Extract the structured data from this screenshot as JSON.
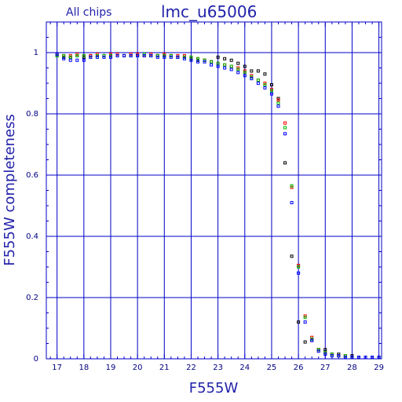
{
  "chart_data": {
    "type": "scatter",
    "title": "lmc_u65006",
    "subtitle": "All chips",
    "xlabel": "F555W",
    "ylabel": "F555W completeness",
    "xlim": [
      16.6,
      29.1
    ],
    "ylim": [
      0,
      1.1
    ],
    "xticks": [
      "17",
      "18",
      "19",
      "20",
      "21",
      "22",
      "23",
      "24",
      "25",
      "26",
      "27",
      "28",
      "29"
    ],
    "yticks": [
      "0",
      "0.2",
      "0.4",
      "0.6",
      "0.8",
      "1"
    ],
    "xtick_values": [
      17,
      18,
      19,
      20,
      21,
      22,
      23,
      24,
      25,
      26,
      27,
      28,
      29
    ],
    "ytick_values": [
      0,
      0.2,
      0.4,
      0.6,
      0.8,
      1
    ],
    "grid": true,
    "colors": {
      "axis": "#0000c8",
      "text": "#2222aa",
      "tick_text": "#000080"
    },
    "series": [
      {
        "color": "#000000",
        "points": [
          [
            17,
            0.99
          ],
          [
            17.25,
            0.985
          ],
          [
            17.5,
            0.985
          ],
          [
            17.75,
            0.99
          ],
          [
            18,
            0.985
          ],
          [
            18.25,
            0.99
          ],
          [
            18.5,
            0.99
          ],
          [
            18.75,
            0.99
          ],
          [
            19,
            0.99
          ],
          [
            19.25,
            0.99
          ],
          [
            19.5,
            0.99
          ],
          [
            19.75,
            0.99
          ],
          [
            20,
            0.99
          ],
          [
            20.25,
            0.99
          ],
          [
            20.5,
            0.99
          ],
          [
            20.75,
            0.99
          ],
          [
            21,
            0.99
          ],
          [
            21.25,
            0.99
          ],
          [
            21.5,
            0.985
          ],
          [
            21.75,
            0.985
          ],
          [
            22,
            0.98
          ],
          [
            22.25,
            0.975
          ],
          [
            22.5,
            0.975
          ],
          [
            22.75,
            0.97
          ],
          [
            23,
            0.985
          ],
          [
            23.25,
            0.98
          ],
          [
            23.5,
            0.975
          ],
          [
            23.75,
            0.965
          ],
          [
            24,
            0.955
          ],
          [
            24.25,
            0.94
          ],
          [
            24.5,
            0.94
          ],
          [
            24.75,
            0.93
          ],
          [
            25,
            0.895
          ],
          [
            25.25,
            0.85
          ],
          [
            25.5,
            0.64
          ],
          [
            25.75,
            0.335
          ],
          [
            26,
            0.12
          ],
          [
            26.25,
            0.055
          ],
          [
            26.5,
            0.06
          ],
          [
            26.75,
            0.03
          ],
          [
            27,
            0.03
          ],
          [
            27.25,
            0.015
          ],
          [
            27.5,
            0.015
          ],
          [
            27.75,
            0.01
          ],
          [
            28,
            0.01
          ],
          [
            28.25,
            0.005
          ],
          [
            28.5,
            0.005
          ],
          [
            28.75,
            0.005
          ],
          [
            29,
            0.005
          ]
        ]
      },
      {
        "color": "#ff0000",
        "points": [
          [
            17,
            0.995
          ],
          [
            17.25,
            0.99
          ],
          [
            17.5,
            0.99
          ],
          [
            17.75,
            0.995
          ],
          [
            18,
            0.99
          ],
          [
            18.25,
            0.99
          ],
          [
            18.5,
            0.995
          ],
          [
            18.75,
            0.99
          ],
          [
            19,
            0.995
          ],
          [
            19.25,
            0.995
          ],
          [
            19.5,
            0.99
          ],
          [
            19.75,
            0.995
          ],
          [
            20,
            0.995
          ],
          [
            20.25,
            0.99
          ],
          [
            20.5,
            0.995
          ],
          [
            20.75,
            0.99
          ],
          [
            21,
            0.995
          ],
          [
            21.25,
            0.99
          ],
          [
            21.5,
            0.99
          ],
          [
            21.75,
            0.99
          ],
          [
            22,
            0.985
          ],
          [
            22.25,
            0.98
          ],
          [
            22.5,
            0.975
          ],
          [
            22.75,
            0.97
          ],
          [
            23,
            0.965
          ],
          [
            23.25,
            0.96
          ],
          [
            23.5,
            0.955
          ],
          [
            23.75,
            0.95
          ],
          [
            24,
            0.94
          ],
          [
            24.25,
            0.925
          ],
          [
            24.5,
            0.91
          ],
          [
            24.75,
            0.9
          ],
          [
            25,
            0.88
          ],
          [
            25.25,
            0.845
          ],
          [
            25.5,
            0.77
          ],
          [
            25.75,
            0.56
          ],
          [
            26,
            0.305
          ],
          [
            26.25,
            0.14
          ],
          [
            26.5,
            0.07
          ],
          [
            26.75,
            0.03
          ],
          [
            27,
            0.02
          ],
          [
            27.25,
            0.015
          ],
          [
            27.5,
            0.01
          ],
          [
            27.75,
            0.01
          ],
          [
            28,
            0.005
          ],
          [
            28.25,
            0.005
          ],
          [
            28.5,
            0.005
          ],
          [
            28.75,
            0.005
          ],
          [
            29,
            0.005
          ]
        ]
      },
      {
        "color": "#00bb00",
        "points": [
          [
            17,
            0.99
          ],
          [
            17.25,
            0.99
          ],
          [
            17.5,
            0.985
          ],
          [
            17.75,
            0.99
          ],
          [
            18,
            0.99
          ],
          [
            18.25,
            0.985
          ],
          [
            18.5,
            0.99
          ],
          [
            18.75,
            0.99
          ],
          [
            19,
            0.99
          ],
          [
            19.25,
            0.99
          ],
          [
            19.5,
            0.99
          ],
          [
            19.75,
            0.99
          ],
          [
            20,
            0.99
          ],
          [
            20.25,
            0.995
          ],
          [
            20.5,
            0.99
          ],
          [
            20.75,
            0.99
          ],
          [
            21,
            0.99
          ],
          [
            21.25,
            0.99
          ],
          [
            21.5,
            0.985
          ],
          [
            21.75,
            0.985
          ],
          [
            22,
            0.985
          ],
          [
            22.25,
            0.98
          ],
          [
            22.5,
            0.975
          ],
          [
            22.75,
            0.97
          ],
          [
            23,
            0.965
          ],
          [
            23.25,
            0.96
          ],
          [
            23.5,
            0.955
          ],
          [
            23.75,
            0.945
          ],
          [
            24,
            0.935
          ],
          [
            24.25,
            0.92
          ],
          [
            24.5,
            0.91
          ],
          [
            24.75,
            0.895
          ],
          [
            25,
            0.875
          ],
          [
            25.25,
            0.835
          ],
          [
            25.5,
            0.755
          ],
          [
            25.75,
            0.565
          ],
          [
            26,
            0.3
          ],
          [
            26.25,
            0.135
          ],
          [
            26.5,
            0.065
          ],
          [
            26.75,
            0.03
          ],
          [
            27,
            0.02
          ],
          [
            27.25,
            0.015
          ],
          [
            27.5,
            0.01
          ],
          [
            27.75,
            0.01
          ],
          [
            28,
            0.005
          ],
          [
            28.25,
            0.005
          ],
          [
            28.5,
            0.005
          ],
          [
            28.75,
            0.005
          ],
          [
            29,
            0.005
          ]
        ]
      },
      {
        "color": "#0000ff",
        "points": [
          [
            17,
            0.995
          ],
          [
            17.25,
            0.98
          ],
          [
            17.5,
            0.975
          ],
          [
            17.75,
            0.975
          ],
          [
            18,
            0.975
          ],
          [
            18.25,
            0.985
          ],
          [
            18.5,
            0.985
          ],
          [
            18.75,
            0.985
          ],
          [
            19,
            0.985
          ],
          [
            19.25,
            0.99
          ],
          [
            19.5,
            0.99
          ],
          [
            19.75,
            0.99
          ],
          [
            20,
            0.99
          ],
          [
            20.25,
            0.99
          ],
          [
            20.5,
            0.99
          ],
          [
            20.75,
            0.985
          ],
          [
            21,
            0.985
          ],
          [
            21.25,
            0.985
          ],
          [
            21.5,
            0.985
          ],
          [
            21.75,
            0.98
          ],
          [
            22,
            0.975
          ],
          [
            22.25,
            0.97
          ],
          [
            22.5,
            0.97
          ],
          [
            22.75,
            0.96
          ],
          [
            23,
            0.955
          ],
          [
            23.25,
            0.95
          ],
          [
            23.5,
            0.945
          ],
          [
            23.75,
            0.935
          ],
          [
            24,
            0.925
          ],
          [
            24.25,
            0.915
          ],
          [
            24.5,
            0.9
          ],
          [
            24.75,
            0.885
          ],
          [
            25,
            0.865
          ],
          [
            25.25,
            0.825
          ],
          [
            25.5,
            0.735
          ],
          [
            25.75,
            0.51
          ],
          [
            26,
            0.28
          ],
          [
            26.25,
            0.12
          ],
          [
            26.5,
            0.06
          ],
          [
            26.75,
            0.025
          ],
          [
            27,
            0.015
          ],
          [
            27.25,
            0.01
          ],
          [
            27.5,
            0.01
          ],
          [
            27.75,
            0.005
          ],
          [
            28,
            0.005
          ],
          [
            28.25,
            0.005
          ],
          [
            28.5,
            0.005
          ],
          [
            28.75,
            0.005
          ],
          [
            29,
            0.005
          ]
        ]
      }
    ]
  }
}
